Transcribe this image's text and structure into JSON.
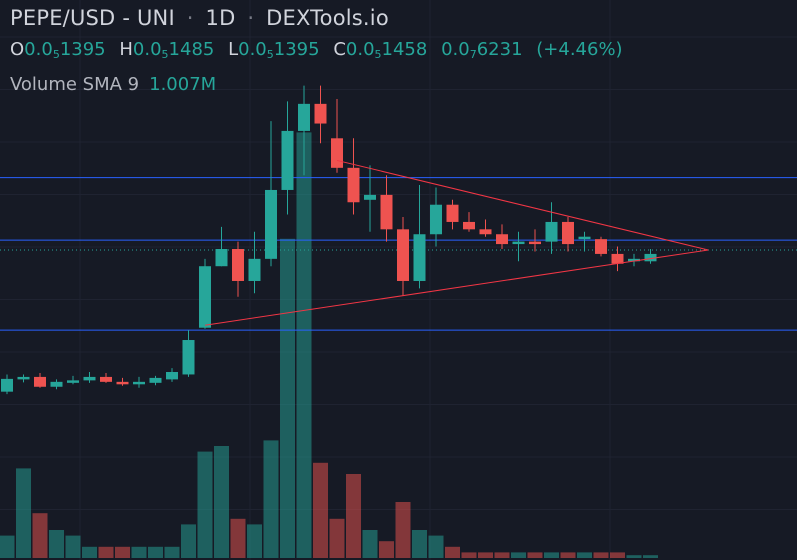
{
  "header": {
    "symbol": "PEPE/USD",
    "exchange": "- UNI",
    "interval": "1D",
    "source": "DEXTools.io"
  },
  "ohlc": {
    "o_label": "O",
    "o_pre": "0.0",
    "o_sub": "5",
    "o_post": "1395",
    "h_label": "H",
    "h_pre": "0.0",
    "h_sub": "5",
    "h_post": "1485",
    "l_label": "L",
    "l_pre": "0.0",
    "l_sub": "5",
    "l_post": "1395",
    "c_label": "C",
    "c_pre": "0.0",
    "c_sub": "5",
    "c_post": "1458",
    "chg_pre": "0.0",
    "chg_sub": "7",
    "chg_post": "6231",
    "chg_pct": "(+4.46%)"
  },
  "volume": {
    "label": "Volume SMA 9",
    "value": "1.007M"
  },
  "colors": {
    "up": "#26a69a",
    "down": "#ef5350",
    "hline": "#2962ff",
    "triangle": "#f23645",
    "background": "#161a25"
  },
  "chart_data": {
    "type": "candlestick",
    "price_axis": [
      0,
      100
    ],
    "volume_axis": [
      0,
      100
    ],
    "candles": [
      {
        "o": 21.0,
        "h": 24.5,
        "l": 20.5,
        "c": 23.6,
        "v": 4
      },
      {
        "o": 23.5,
        "h": 24.5,
        "l": 22.9,
        "c": 24.0,
        "v": 16
      },
      {
        "o": 24.0,
        "h": 24.8,
        "l": 21.8,
        "c": 22.0,
        "v": 8
      },
      {
        "o": 22.0,
        "h": 23.5,
        "l": 21.5,
        "c": 23.0,
        "v": 5
      },
      {
        "o": 22.8,
        "h": 24.2,
        "l": 22.5,
        "c": 23.3,
        "v": 4
      },
      {
        "o": 23.3,
        "h": 25.0,
        "l": 22.8,
        "c": 24.0,
        "v": 2
      },
      {
        "o": 24.0,
        "h": 24.8,
        "l": 22.8,
        "c": 23.0,
        "v": 2
      },
      {
        "o": 23.0,
        "h": 23.8,
        "l": 22.2,
        "c": 22.5,
        "v": 2
      },
      {
        "o": 22.5,
        "h": 24.0,
        "l": 21.8,
        "c": 23.0,
        "v": 2
      },
      {
        "o": 22.8,
        "h": 24.2,
        "l": 22.3,
        "c": 23.8,
        "v": 2
      },
      {
        "o": 23.5,
        "h": 25.8,
        "l": 23.0,
        "c": 25.0,
        "v": 2
      },
      {
        "o": 24.5,
        "h": 33.5,
        "l": 24.0,
        "c": 31.5,
        "v": 6
      },
      {
        "o": 34.0,
        "h": 48.0,
        "l": 33.8,
        "c": 46.5,
        "v": 19
      },
      {
        "o": 46.5,
        "h": 54.5,
        "l": 46.5,
        "c": 50.0,
        "v": 20
      },
      {
        "o": 50.0,
        "h": 51.5,
        "l": 40.3,
        "c": 43.5,
        "v": 7
      },
      {
        "o": 43.5,
        "h": 53.5,
        "l": 41.0,
        "c": 48.0,
        "v": 6
      },
      {
        "o": 48.0,
        "h": 76.0,
        "l": 46.5,
        "c": 62.0,
        "v": 21
      },
      {
        "o": 62.0,
        "h": 80.0,
        "l": 57.0,
        "c": 74.0,
        "v": 57
      },
      {
        "o": 74.0,
        "h": 83.2,
        "l": 65.0,
        "c": 79.5,
        "v": 76
      },
      {
        "o": 79.5,
        "h": 83.2,
        "l": 71.5,
        "c": 75.5,
        "v": 17
      },
      {
        "o": 72.5,
        "h": 80.5,
        "l": 65.5,
        "c": 66.5,
        "v": 7
      },
      {
        "o": 66.5,
        "h": 72.5,
        "l": 57.0,
        "c": 59.5,
        "v": 15
      },
      {
        "o": 60.0,
        "h": 67.0,
        "l": 53.5,
        "c": 61.0,
        "v": 5
      },
      {
        "o": 61.0,
        "h": 65.0,
        "l": 51.5,
        "c": 54.0,
        "v": 3
      },
      {
        "o": 54.0,
        "h": 56.5,
        "l": 40.5,
        "c": 43.5,
        "v": 10
      },
      {
        "o": 43.5,
        "h": 63.0,
        "l": 42.0,
        "c": 53.0,
        "v": 5
      },
      {
        "o": 53.0,
        "h": 62.5,
        "l": 50.5,
        "c": 59.0,
        "v": 4
      },
      {
        "o": 59.0,
        "h": 60.0,
        "l": 54.0,
        "c": 55.5,
        "v": 2
      },
      {
        "o": 55.5,
        "h": 57.5,
        "l": 53.5,
        "c": 54.0,
        "v": 1
      },
      {
        "o": 54.0,
        "h": 56.0,
        "l": 52.5,
        "c": 53.0,
        "v": 1
      },
      {
        "o": 53.0,
        "h": 55.0,
        "l": 50.0,
        "c": 51.0,
        "v": 1
      },
      {
        "o": 51.0,
        "h": 53.5,
        "l": 47.5,
        "c": 51.5,
        "v": 1
      },
      {
        "o": 51.5,
        "h": 54.0,
        "l": 49.5,
        "c": 51.0,
        "v": 1
      },
      {
        "o": 51.5,
        "h": 59.5,
        "l": 49.0,
        "c": 55.5,
        "v": 1
      },
      {
        "o": 55.5,
        "h": 56.5,
        "l": 49.5,
        "c": 51.0,
        "v": 1
      },
      {
        "o": 52.0,
        "h": 53.5,
        "l": 49.5,
        "c": 52.5,
        "v": 1
      },
      {
        "o": 52.0,
        "h": 52.5,
        "l": 48.5,
        "c": 49.0,
        "v": 1
      },
      {
        "o": 49.0,
        "h": 50.5,
        "l": 45.5,
        "c": 47.0,
        "v": 1
      },
      {
        "o": 47.5,
        "h": 49.0,
        "l": 46.5,
        "c": 48.0,
        "v": 0.5
      },
      {
        "o": 47.5,
        "h": 50.0,
        "l": 47.0,
        "c": 49.0,
        "v": 0.5
      }
    ],
    "horizontal_lines": [
      64.5,
      51.8,
      33.5
    ],
    "current_price_line": 49.8,
    "triangle": {
      "upper_start": {
        "index": 20,
        "value": 68.0
      },
      "lower_start": {
        "index": 12,
        "value": 34.5
      },
      "apex": {
        "index": 42.5,
        "value": 49.8
      }
    }
  }
}
